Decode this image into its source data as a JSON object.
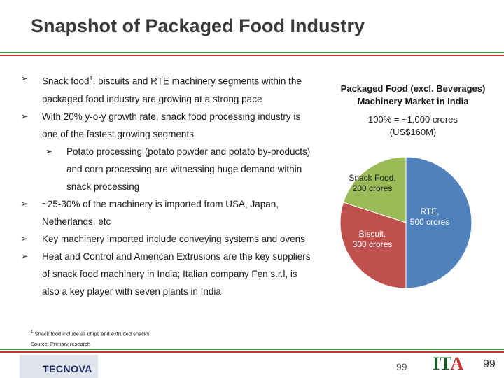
{
  "slide": {
    "title": "Snapshot of Packaged Food Industry",
    "page_number": "99"
  },
  "bullets": [
    {
      "text": "Snack food",
      "sup": "1",
      "text_after": ", biscuits and RTE machinery segments within the packaged food industry are growing at a strong pace"
    },
    {
      "text": "With 20% y-o-y growth rate, snack food processing industry is one of the fastest growing segments"
    },
    {
      "text": "Potato processing (potato powder and potato by-products) and corn processing are witnessing huge demand within snack processing",
      "sub": true
    },
    {
      "text": "~25-30% of the machinery is imported from USA, Japan, Netherlands, etc"
    },
    {
      "text": "Key machinery imported include conveying systems and ovens"
    },
    {
      "text": "Heat and Control and American Extrusions are the key suppliers of snack food machinery in India; Italian company Fen s.r.l, is also a key player with seven plants in India"
    }
  ],
  "footnote": {
    "mark": "1",
    "text": "Snack food include all chips and extruded snacks"
  },
  "source": "Source: Primary research",
  "logos": {
    "left": "TECNOVA",
    "right_main": "IT",
    "right_accent": "A"
  },
  "icons": {
    "bullet": "arrowhead-bullet-icon"
  },
  "chart_data": {
    "type": "pie",
    "title": "Packaged Food (excl. Beverages) Machinery Market in India",
    "subtitle_line1": "100% = ~1,000 crores",
    "subtitle_line2": "(US$160M)",
    "unit": "crores",
    "slices": [
      {
        "label_line1": "RTE,",
        "label_line2": "500 crores",
        "value": 500,
        "color": "#4f81bd"
      },
      {
        "label_line1": "Biscuit,",
        "label_line2": "300 crores",
        "value": 300,
        "color": "#c0504d"
      },
      {
        "label_line1": "Snack Food,",
        "label_line2": "200 crores",
        "value": 200,
        "color": "#9bbb59"
      }
    ]
  }
}
